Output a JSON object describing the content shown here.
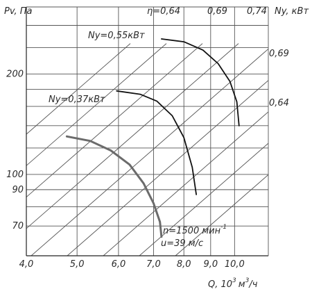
{
  "chart_data": {
    "type": "line",
    "title": "",
    "x_axis": {
      "label": "Q, 10",
      "label_exp": "3",
      "label_unit": "м",
      "label_unit_exp": "3",
      "label_tail": "/ч",
      "scale": "log",
      "ticks": [
        4.0,
        5.0,
        6.0,
        7.0,
        8.0,
        9.0,
        10.0
      ],
      "tick_labels": [
        "4,0",
        "5,0",
        "6,0",
        "7,0",
        "8,0",
        "9,0",
        "10,0"
      ],
      "range": [
        4.0,
        11.6
      ]
    },
    "y_axis": {
      "label": "Pv, Па",
      "scale": "log",
      "ticks": [
        70,
        80,
        90,
        100,
        120,
        140,
        160,
        180,
        200,
        240,
        280
      ],
      "tick_labels": [
        "70",
        "",
        "90",
        "100",
        "",
        "",
        "",
        "",
        "200",
        "",
        ""
      ],
      "range": [
        57,
        318
      ]
    },
    "right_label": "Ny, кВт",
    "efficiency_lines": [
      {
        "label": "η=0,64",
        "position": "top"
      },
      {
        "label": "0,69",
        "position": "top"
      },
      {
        "label": "0,74",
        "position": "top"
      },
      {
        "label": "0,69",
        "position": "right"
      },
      {
        "label": "0,64",
        "position": "right"
      }
    ],
    "series": [
      {
        "name": "Ny=0,37кВт",
        "emphasis": true,
        "points": [
          [
            4.78,
            130
          ],
          [
            5.3,
            126
          ],
          [
            5.8,
            118
          ],
          [
            6.3,
            107
          ],
          [
            6.7,
            94
          ],
          [
            7.0,
            82
          ],
          [
            7.2,
            72
          ],
          [
            7.25,
            65
          ]
        ]
      },
      {
        "name": "Ny=0,37кВт",
        "emphasis": false,
        "points": [
          [
            5.95,
            178
          ],
          [
            6.6,
            174
          ],
          [
            7.1,
            166
          ],
          [
            7.6,
            150
          ],
          [
            8.0,
            129
          ],
          [
            8.3,
            105
          ],
          [
            8.45,
            87
          ]
        ]
      },
      {
        "name": "Ny=0,55кВт",
        "emphasis": false,
        "points": [
          [
            7.25,
            255
          ],
          [
            8.0,
            250
          ],
          [
            8.7,
            236
          ],
          [
            9.3,
            215
          ],
          [
            9.8,
            190
          ],
          [
            10.1,
            165
          ],
          [
            10.2,
            140
          ]
        ]
      }
    ],
    "series_labels": [
      "Ny=0,55кВт",
      "Ny=0,37кВт"
    ],
    "annotation_line1": "n=1500 мин",
    "annotation_line1_exp": "-1",
    "annotation_line2": "u=39 м/с",
    "grid": true
  }
}
